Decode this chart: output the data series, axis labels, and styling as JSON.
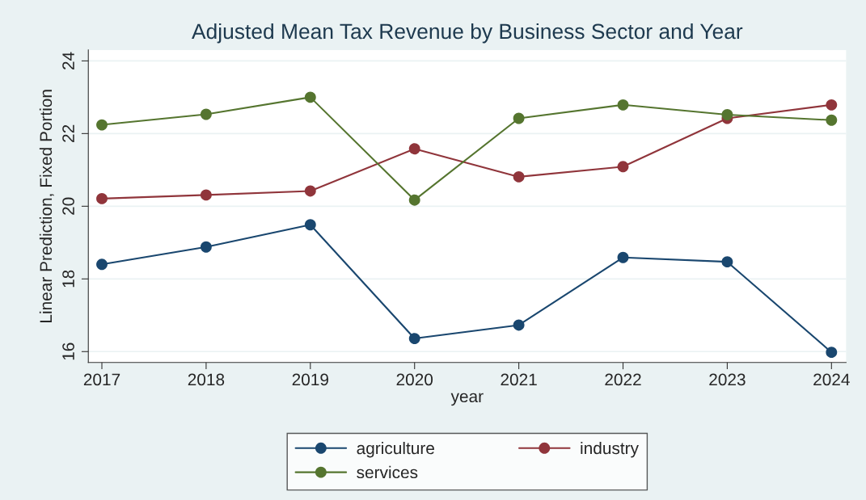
{
  "chart_data": {
    "type": "line",
    "title": "Adjusted Mean Tax Revenue by Business Sector and Year",
    "xlabel": "year",
    "ylabel": "Linear Prediction, Fixed Portion",
    "x": [
      2017,
      2018,
      2019,
      2020,
      2021,
      2022,
      2023,
      2024
    ],
    "series": [
      {
        "name": "agriculture",
        "color": "#1a476f",
        "values": [
          18.4,
          18.88,
          19.49,
          16.36,
          16.73,
          18.59,
          18.47,
          15.98
        ]
      },
      {
        "name": "industry",
        "color": "#90353b",
        "values": [
          20.21,
          20.31,
          20.42,
          21.58,
          20.81,
          21.09,
          22.42,
          22.79
        ]
      },
      {
        "name": "services",
        "color": "#55752f",
        "values": [
          22.24,
          22.53,
          23.0,
          20.17,
          22.42,
          22.79,
          22.52,
          22.37
        ]
      }
    ],
    "xlim": [
      2016.87,
      2024.14
    ],
    "xticks": [
      2017,
      2018,
      2019,
      2020,
      2021,
      2022,
      2023,
      2024
    ],
    "ylim": [
      15.7,
      24.3
    ],
    "yticks": [
      16,
      18,
      20,
      22,
      24
    ],
    "grid": "y",
    "legend": "bottom",
    "marker": "circle",
    "line_style": "solid"
  }
}
